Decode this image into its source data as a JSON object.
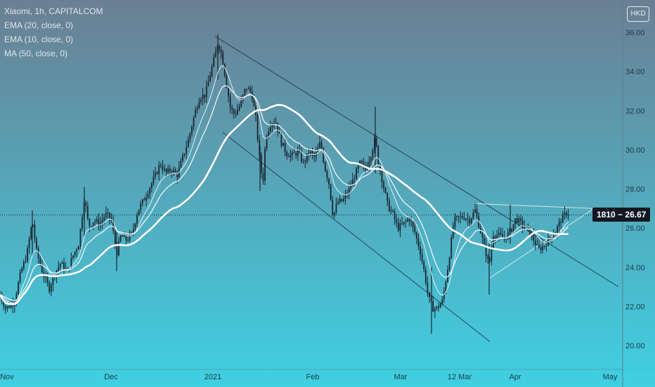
{
  "legend": {
    "symbol": "Xiaomi, 1h, CAPITALCOM",
    "ema20": "EMA (20, close, 0)",
    "ema10": "EMA (10, close, 0)",
    "ma50": "MA (50, close, 0)"
  },
  "currency": "HKD",
  "price_tag": {
    "countdown": "1810",
    "price": "26.67",
    "separator": " − "
  },
  "colors": {
    "bg_top": "#6b7f93",
    "bg_bottom": "#3fd0e2",
    "candle": "#1a2430",
    "ma": "#ffffff",
    "channel": "#1c2a44",
    "triangle": "#e8eef2"
  },
  "chart_data": {
    "type": "candlestick",
    "y_axis": {
      "min": 19.0,
      "max": 37.0,
      "ticks": [
        "20.00",
        "22.00",
        "24.00",
        "26.00",
        "28.00",
        "30.00",
        "32.00",
        "34.00",
        "36.00"
      ]
    },
    "x_axis": {
      "ticks": [
        "Nov",
        "Dec",
        "2021",
        "Feb",
        "Mar",
        "12 Mar",
        "Apr",
        "May"
      ]
    },
    "last_price": 26.67,
    "price_path": [
      [
        0,
        22.6
      ],
      [
        8,
        21.9
      ],
      [
        20,
        22.2
      ],
      [
        30,
        23.8
      ],
      [
        38,
        24.6
      ],
      [
        46,
        26.4
      ],
      [
        52,
        24.8
      ],
      [
        60,
        23.8
      ],
      [
        70,
        22.9
      ],
      [
        78,
        23.7
      ],
      [
        86,
        24.2
      ],
      [
        96,
        23.8
      ],
      [
        104,
        24.6
      ],
      [
        112,
        25.2
      ],
      [
        120,
        27.6
      ],
      [
        126,
        26.1
      ],
      [
        134,
        26.4
      ],
      [
        142,
        26.2
      ],
      [
        150,
        26.7
      ],
      [
        158,
        26.5
      ],
      [
        166,
        24.7
      ],
      [
        172,
        25.6
      ],
      [
        180,
        25.4
      ],
      [
        188,
        25.7
      ],
      [
        196,
        26.9
      ],
      [
        204,
        27.4
      ],
      [
        212,
        28.0
      ],
      [
        220,
        28.6
      ],
      [
        228,
        29.3
      ],
      [
        236,
        28.8
      ],
      [
        244,
        29.0
      ],
      [
        252,
        28.7
      ],
      [
        260,
        29.6
      ],
      [
        268,
        30.5
      ],
      [
        276,
        31.7
      ],
      [
        284,
        32.7
      ],
      [
        292,
        32.8
      ],
      [
        300,
        34.0
      ],
      [
        306,
        34.8
      ],
      [
        310,
        35.5
      ],
      [
        316,
        34.8
      ],
      [
        322,
        33.4
      ],
      [
        328,
        32.1
      ],
      [
        334,
        31.8
      ],
      [
        342,
        32.3
      ],
      [
        350,
        33.2
      ],
      [
        358,
        32.9
      ],
      [
        364,
        31.6
      ],
      [
        370,
        29.3
      ],
      [
        374,
        28.3
      ],
      [
        378,
        30.6
      ],
      [
        384,
        31.3
      ],
      [
        392,
        31.5
      ],
      [
        400,
        30.4
      ],
      [
        408,
        29.8
      ],
      [
        416,
        29.7
      ],
      [
        424,
        29.9
      ],
      [
        432,
        29.3
      ],
      [
        440,
        29.9
      ],
      [
        448,
        29.6
      ],
      [
        456,
        30.4
      ],
      [
        462,
        29.1
      ],
      [
        468,
        28.3
      ],
      [
        474,
        26.6
      ],
      [
        480,
        27.3
      ],
      [
        488,
        27.4
      ],
      [
        496,
        27.9
      ],
      [
        504,
        28.6
      ],
      [
        512,
        29.3
      ],
      [
        520,
        29.0
      ],
      [
        528,
        29.8
      ],
      [
        534,
        30.6
      ],
      [
        538,
        29.4
      ],
      [
        546,
        28.1
      ],
      [
        552,
        27.1
      ],
      [
        558,
        26.8
      ],
      [
        566,
        26.0
      ],
      [
        574,
        26.2
      ],
      [
        582,
        26.5
      ],
      [
        590,
        25.8
      ],
      [
        598,
        24.8
      ],
      [
        604,
        23.7
      ],
      [
        610,
        22.4
      ],
      [
        616,
        21.9
      ],
      [
        622,
        21.9
      ],
      [
        630,
        22.3
      ],
      [
        638,
        24.2
      ],
      [
        646,
        26.4
      ],
      [
        652,
        26.5
      ],
      [
        660,
        26.6
      ],
      [
        668,
        26.4
      ],
      [
        676,
        26.9
      ],
      [
        684,
        25.8
      ],
      [
        690,
        24.9
      ],
      [
        696,
        24.1
      ],
      [
        702,
        25.7
      ],
      [
        710,
        25.6
      ],
      [
        718,
        25.5
      ],
      [
        726,
        25.8
      ],
      [
        734,
        26.5
      ],
      [
        742,
        26.2
      ],
      [
        750,
        26.0
      ],
      [
        758,
        25.5
      ],
      [
        766,
        24.9
      ],
      [
        774,
        25.1
      ],
      [
        782,
        25.5
      ],
      [
        790,
        25.8
      ],
      [
        798,
        26.4
      ],
      [
        806,
        26.8
      ],
      [
        810,
        26.7
      ]
    ],
    "spikes": [
      [
        46,
        26.9,
        24.6
      ],
      [
        120,
        28.1,
        25.6
      ],
      [
        166,
        25.8,
        23.8
      ],
      [
        310,
        35.9,
        33.6
      ],
      [
        370,
        30.2,
        27.9
      ],
      [
        534,
        32.2,
        28.8
      ],
      [
        614,
        24.0,
        20.6
      ],
      [
        696,
        25.2,
        22.6
      ],
      [
        726,
        27.2,
        25.2
      ]
    ],
    "annotations": [
      {
        "type": "channel_upper",
        "from": [
          306,
          35.8
        ],
        "to": [
          880,
          23.0
        ]
      },
      {
        "type": "channel_lower",
        "from": [
          317,
          30.9
        ],
        "to": [
          697,
          20.2
        ]
      },
      {
        "type": "triangle_top",
        "from": [
          676,
          27.25
        ],
        "to": [
          845,
          27.0
        ]
      },
      {
        "type": "triangle_bottom",
        "from": [
          697,
          23.45
        ],
        "to": [
          845,
          27.0
        ]
      },
      {
        "type": "current_price_line",
        "price": 26.67
      }
    ]
  }
}
